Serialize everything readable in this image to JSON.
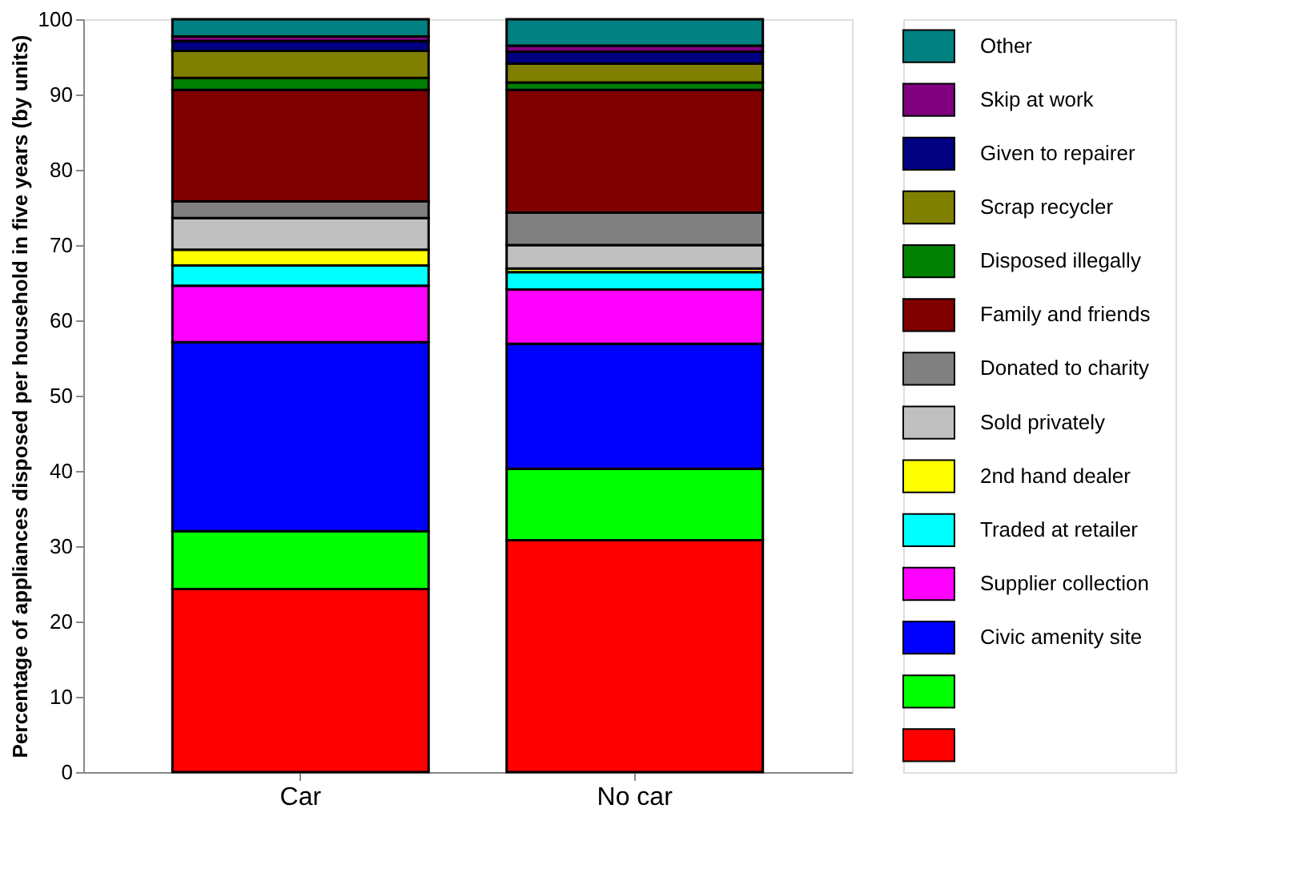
{
  "chart_data": {
    "type": "bar",
    "stacked": true,
    "ylabel": "Percentage of appliances disposed per household in five years (by units)",
    "categories": [
      "Car",
      "No car"
    ],
    "ylim": [
      0,
      100
    ],
    "yticks": [
      0,
      10,
      20,
      30,
      40,
      50,
      60,
      70,
      80,
      90,
      100
    ],
    "grid": false,
    "legend": "right",
    "series": [
      {
        "color": "#ff0000",
        "values": [
          24.3,
          30.8
        ]
      },
      {
        "color": "#00ff00",
        "values": [
          7.7,
          9.5
        ]
      },
      {
        "name": "Civic amenity site",
        "color": "#0000ff",
        "values": [
          25.1,
          16.6
        ]
      },
      {
        "name": "Supplier collection",
        "color": "#ff00ff",
        "values": [
          7.5,
          7.2
        ]
      },
      {
        "name": "Traded at retailer",
        "color": "#00ffff",
        "values": [
          2.7,
          2.3
        ]
      },
      {
        "name": "2nd hand dealer",
        "color": "#ffff00",
        "values": [
          2.1,
          0.5
        ]
      },
      {
        "name": "Sold privately",
        "color": "#c0c0c0",
        "values": [
          4.2,
          3.1
        ]
      },
      {
        "name": "Donated to charity",
        "color": "#808080",
        "values": [
          2.2,
          4.3
        ]
      },
      {
        "name": "Family and friends",
        "color": "#800000",
        "values": [
          14.8,
          16.3
        ]
      },
      {
        "name": "Disposed illegally",
        "color": "#008000",
        "values": [
          1.6,
          1.0
        ]
      },
      {
        "name": "Scrap recycler",
        "color": "#808000",
        "values": [
          3.6,
          2.5
        ]
      },
      {
        "name": "Given to repairer",
        "color": "#000080",
        "values": [
          1.3,
          1.6
        ]
      },
      {
        "name": "Skip at work",
        "color": "#800080",
        "values": [
          0.6,
          0.8
        ]
      },
      {
        "name": "Other",
        "color": "#008080",
        "values": [
          2.3,
          3.5
        ]
      }
    ]
  }
}
